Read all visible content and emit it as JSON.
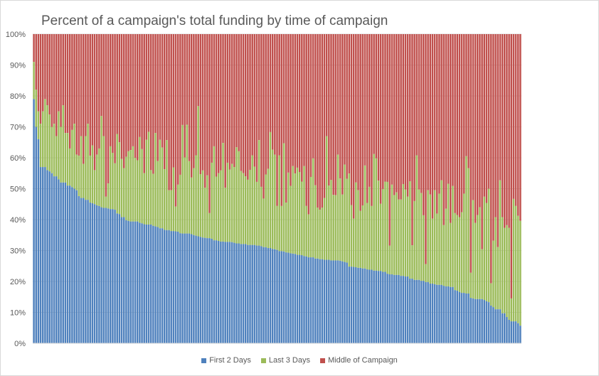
{
  "chart_data": {
    "type": "bar",
    "stacked": "percent",
    "title": "Percent of a campaign's total funding by time of campaign",
    "xlabel": "",
    "ylabel": "",
    "ylim": [
      0,
      100
    ],
    "yticks": [
      "0%",
      "10%",
      "20%",
      "30%",
      "40%",
      "50%",
      "60%",
      "70%",
      "80%",
      "90%",
      "100%"
    ],
    "grid": true,
    "legend_position": "bottom",
    "series": [
      {
        "name": "First 2 Days",
        "color": "#4f81bd",
        "values": [
          79,
          70,
          66,
          57,
          57,
          57,
          56,
          55.6,
          55,
          54,
          54,
          53,
          52,
          52,
          52,
          51,
          51,
          50.5,
          50,
          49.5,
          47.6,
          47,
          47,
          46.4,
          46.4,
          45.5,
          45.3,
          45,
          44.6,
          44.4,
          44,
          43.8,
          43.8,
          43.6,
          43.4,
          43.4,
          43.2,
          42,
          41.8,
          40.8,
          40.8,
          39.8,
          39.6,
          39.4,
          39.4,
          39.4,
          39.4,
          39,
          38.8,
          38.5,
          38.4,
          38.4,
          38.4,
          38,
          37.8,
          37.6,
          37.2,
          37.2,
          36.7,
          36.6,
          36.6,
          36.3,
          36.3,
          36.2,
          36.1,
          35.6,
          35.5,
          35.5,
          35.5,
          35.5,
          35.3,
          35,
          34.8,
          34.6,
          34.4,
          34.2,
          34.1,
          34,
          34,
          33.8,
          33.3,
          33.3,
          33.1,
          32.9,
          32.9,
          32.8,
          32.8,
          32.8,
          32.7,
          32.5,
          32.3,
          32.3,
          32.1,
          32.1,
          32.1,
          31.8,
          31.8,
          31.8,
          31.8,
          31.6,
          31.6,
          31.4,
          31.1,
          31.1,
          30.8,
          30.8,
          30.5,
          30.4,
          30.2,
          29.8,
          29.8,
          29.7,
          29.4,
          29.3,
          29.1,
          29,
          28.9,
          28.6,
          28.6,
          28.5,
          28.2,
          28.1,
          27.8,
          27.8,
          27.8,
          27.4,
          27.4,
          27.2,
          27.2,
          27,
          27,
          27,
          26.8,
          26.8,
          26.8,
          26.8,
          26.7,
          26.5,
          26.3,
          26.1,
          24.8,
          24.8,
          24.7,
          24.6,
          24.4,
          24.4,
          24.2,
          24.2,
          23.9,
          23.8,
          23.8,
          23.5,
          23.5,
          23.4,
          23.4,
          23.1,
          23.1,
          22.5,
          22.3,
          22.3,
          22.1,
          22.1,
          22.1,
          21.8,
          21.8,
          21.6,
          21.6,
          20.9,
          20.9,
          20.5,
          20.5,
          20.5,
          20.2,
          20.2,
          19.8,
          19.8,
          19.3,
          19.3,
          19.1,
          18.9,
          18.9,
          18.9,
          18.6,
          18.4,
          18.4,
          18.2,
          18.2,
          17.2,
          17,
          16.6,
          16.3,
          16.3,
          16.1,
          16.1,
          14.7,
          14.5,
          14.3,
          14.3,
          14.3,
          14.3,
          14,
          13.6,
          13.3,
          12.2,
          11.7,
          11,
          11,
          11,
          9.7,
          9.7,
          8.5,
          7.6,
          7.1,
          7.1,
          7.1,
          6.5,
          5.7
        ]
      },
      {
        "name": "Last 3 Days",
        "color": "#9bbb59",
        "values": [
          12,
          12,
          9,
          14,
          18,
          22,
          21,
          18.4,
          15,
          17,
          13,
          22,
          18,
          25,
          16,
          17,
          12,
          18.5,
          21,
          11.5,
          13.1,
          20,
          11,
          20.6,
          24.6,
          15.2,
          18.7,
          11,
          16.4,
          18.6,
          29.5,
          23.2,
          3.6,
          8.1,
          20.3,
          18.2,
          15,
          25.7,
          23.2,
          18.8,
          15.8,
          20.5,
          22.5,
          23.1,
          24.3,
          20.6,
          19.8,
          27.7,
          24,
          16.5,
          27.4,
          30,
          17.6,
          16.8,
          30.2,
          21.3,
          28.6,
          26.1,
          19.6,
          29.1,
          12.9,
          13.2,
          20.6,
          8,
          15.2,
          18.9,
          35.1,
          24.6,
          35.2,
          23.4,
          18.3,
          21.6,
          26,
          42.1,
          20.3,
          21.7,
          16.2,
          20.3,
          8.1,
          24.6,
          30.4,
          20.6,
          21.9,
          23,
          31.9,
          17.5,
          25.6,
          23.4,
          25.3,
          24.5,
          31.1,
          29.8,
          23.6,
          22.9,
          21.9,
          21.1,
          24.3,
          29,
          25.3,
          20.6,
          34.1,
          19.2,
          15.7,
          23.5,
          25.6,
          37.5,
          32.1,
          30.6,
          14.2,
          31,
          14.6,
          35,
          16.1,
          25.9,
          21.8,
          28.3,
          26,
          28.2,
          26.8,
          23.8,
          29.1,
          16.3,
          13.9,
          26,
          32,
          23.7,
          16.5,
          16,
          16.7,
          20,
          40,
          24,
          26,
          21.2,
          21.1,
          34.2,
          26.6,
          21.6,
          31.5,
          27.1,
          30.1,
          19.9,
          15.6,
          27.4,
          25.1,
          18.4,
          20.4,
          33.3,
          21.5,
          26.8,
          20.6,
          37.7,
          36.3,
          29.2,
          21.7,
          26.8,
          29.2,
          29.7,
          9.3,
          29,
          25.8,
          26.7,
          24.4,
          24.7,
          29.7,
          28.1,
          25.8,
          31.5,
          10.8,
          25.5,
          40.3,
          29.2,
          28.4,
          21.2,
          5.8,
          29.7,
          28.8,
          21,
          30.4,
          23,
          29.5,
          33.8,
          19.6,
          25.1,
          33.2,
          20.7,
          32.7,
          24.9,
          24.5,
          24.2,
          26.1,
          32.1,
          44.4,
          40.5,
          8.1,
          31.8,
          24.6,
          27.2,
          29.7,
          16.1,
          33.4,
          31.8,
          36.7,
          7.2,
          21.5,
          29.8,
          20.1,
          41.7,
          31.1,
          27.6,
          29.7,
          29.7,
          7.4,
          39.6,
          37.3,
          34.7,
          33.9
        ]
      },
      {
        "name": "Middle of Campaign",
        "color": "#c0504d",
        "values": "remainder to 100%"
      }
    ]
  }
}
